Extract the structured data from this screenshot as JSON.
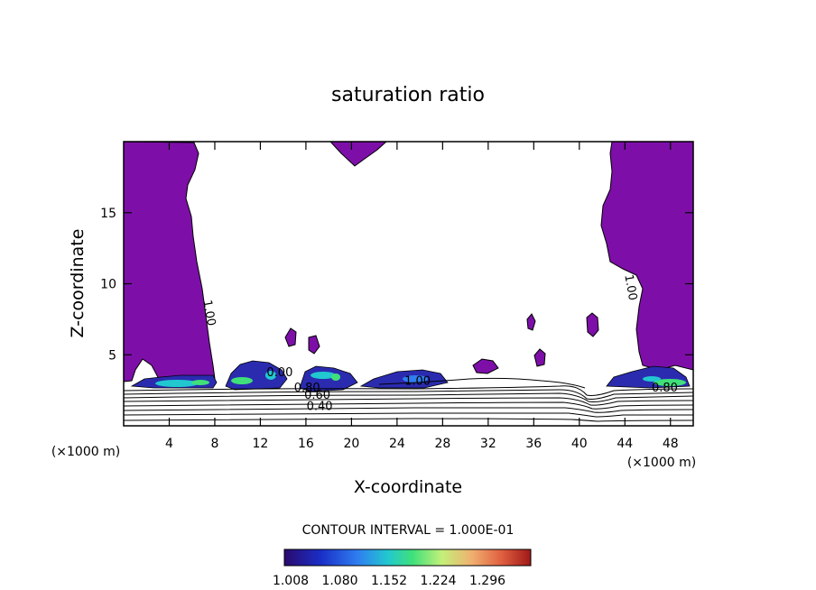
{
  "chart_data": {
    "type": "filled-contour",
    "title": "saturation ratio",
    "xlabel": "X-coordinate",
    "ylabel": "Z-coordinate",
    "x_unit_left": "(×1000 m)",
    "x_unit_right": "(×1000 m)",
    "xlim": [
      0,
      50
    ],
    "ylim": [
      0,
      20
    ],
    "x_ticks": [
      4,
      8,
      12,
      16,
      20,
      24,
      28,
      32,
      36,
      40,
      44,
      48
    ],
    "y_ticks": [
      5,
      10,
      15
    ],
    "contour_labels": [
      {
        "text": "1.00",
        "x": 7.2,
        "z": 7.9
      },
      {
        "text": "1.00",
        "x": 44.2,
        "z": 9.7
      },
      {
        "text": "0.80",
        "x": 16.1,
        "z": 2.4
      },
      {
        "text": "0.60",
        "x": 17.0,
        "z": 1.9
      },
      {
        "text": "0.40",
        "x": 17.2,
        "z": 1.1
      },
      {
        "text": "0.80",
        "x": 47.5,
        "z": 2.4
      },
      {
        "text": "1.00",
        "x": 25.8,
        "z": 2.9
      },
      {
        "text": "0.00",
        "x": 13.7,
        "z": 3.5
      }
    ],
    "contour_interval_text": "CONTOUR INTERVAL = 1.000E-01",
    "colorbar": {
      "ticks": [
        "1.008",
        "1.080",
        "1.152",
        "1.224",
        "1.296"
      ],
      "colors": [
        "#2a0a6e",
        "#1a2fc8",
        "#2f7ff0",
        "#22c8d0",
        "#3fe07a",
        "#c4f07a",
        "#f0b070",
        "#e06040",
        "#a01818"
      ]
    },
    "fill_color": "#7d0fa8",
    "line_color": "#000000"
  }
}
